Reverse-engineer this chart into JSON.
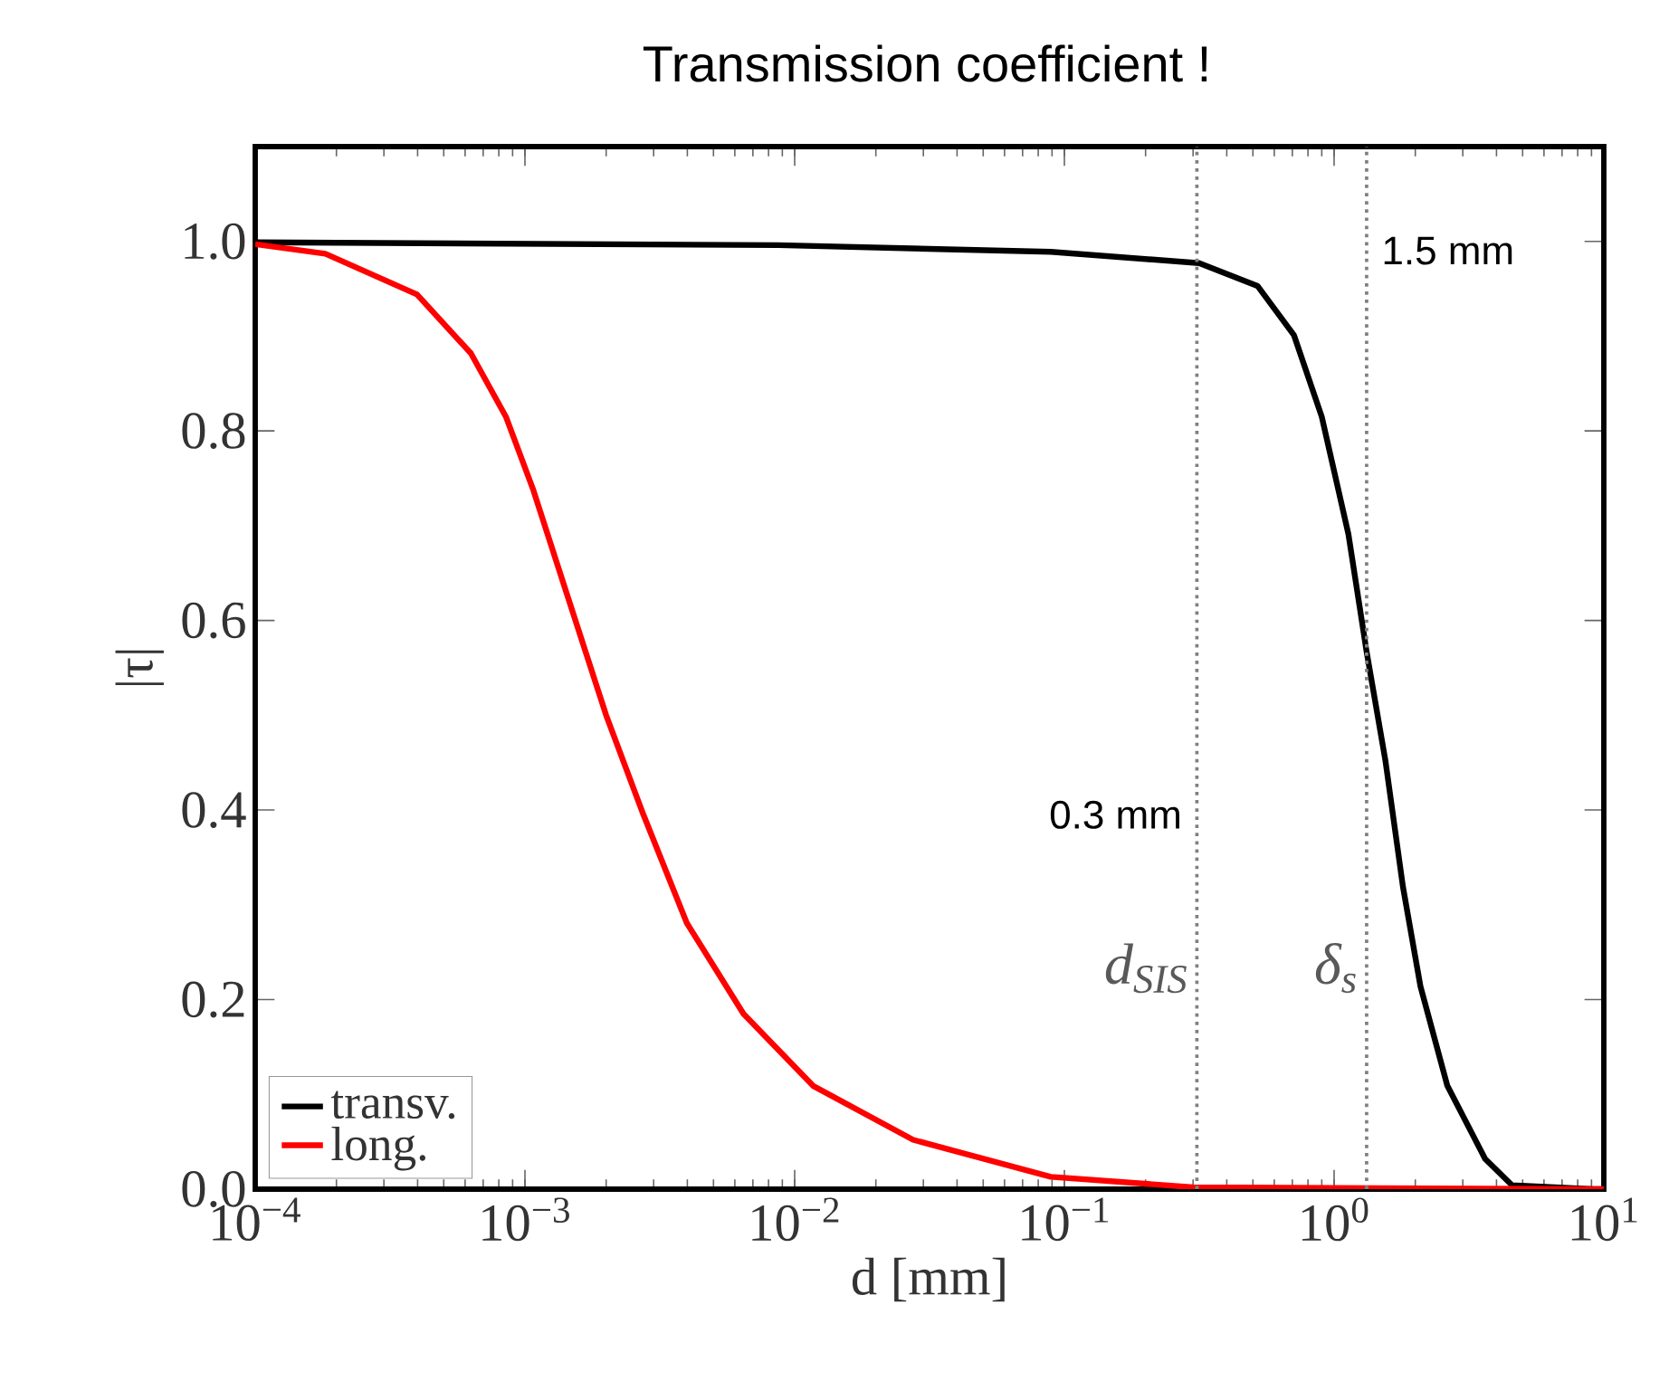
{
  "chart_data": {
    "type": "line",
    "title": "Transmission coefficient !",
    "xlabel": "d [mm]",
    "ylabel": "|τ|",
    "log": "x",
    "xlim": [
      0.0001,
      10
    ],
    "ylim": [
      0,
      1.1
    ],
    "xticks": [
      {
        "value": 0.0001,
        "label": "10$^{−4}$"
      },
      {
        "value": 0.001,
        "label": "10$^{−3}$"
      },
      {
        "value": 0.01,
        "label": "10$^{−2}$"
      },
      {
        "value": 0.1,
        "label": "10$^{−1}$"
      },
      {
        "value": 1,
        "label": "10$^{0}$"
      },
      {
        "value": 10,
        "label": "10$^{1}$"
      }
    ],
    "yticks": [
      {
        "value": 0,
        "label": "0.0"
      },
      {
        "value": 0.2,
        "label": "0.2"
      },
      {
        "value": 0.4,
        "label": "0.4"
      },
      {
        "value": 0.6,
        "label": "0.6"
      },
      {
        "value": 0.8,
        "label": "0.8"
      },
      {
        "value": 1,
        "label": "1.0"
      }
    ],
    "series": [
      {
        "name": "transv.",
        "color": "#000000",
        "x": [
          0.0001,
          0.0087,
          0.089,
          0.316,
          0.52,
          0.71,
          0.9,
          1.13,
          1.32,
          1.55,
          1.8,
          2.09,
          2.63,
          3.63,
          4.57,
          9.1,
          10
        ],
        "values": [
          0.999,
          0.996,
          0.989,
          0.977,
          0.953,
          0.901,
          0.815,
          0.691,
          0.567,
          0.452,
          0.319,
          0.214,
          0.109,
          0.032,
          0.004,
          0,
          0
        ]
      },
      {
        "name": "long.",
        "color": "#ff0000",
        "x": [
          0.0001,
          0.000182,
          0.000398,
          0.00063,
          0.00085,
          0.00107,
          0.00148,
          0.002,
          0.00275,
          0.00398,
          0.00646,
          0.0117,
          0.0275,
          0.089,
          0.3,
          9.1,
          10
        ],
        "values": [
          0.997,
          0.987,
          0.944,
          0.882,
          0.815,
          0.739,
          0.615,
          0.5,
          0.395,
          0.281,
          0.185,
          0.109,
          0.052,
          0.013,
          0.002,
          0,
          0
        ]
      }
    ],
    "ref_lines": [
      {
        "axis": "x",
        "value": 0.31,
        "label": "d$_{SIS}$",
        "color": "#808080",
        "line_style": "dotted"
      },
      {
        "axis": "x",
        "value": 1.32,
        "label": "δ$_{s}$",
        "color": "#808080",
        "line_style": "dotted"
      }
    ],
    "annotations": [
      {
        "text": "0.3 mm",
        "x": 0.31,
        "y": 0.395
      },
      {
        "text": "1.5 mm",
        "x": 1.32,
        "y": 0.99
      }
    ],
    "legend": "bottom left",
    "marker": "none",
    "line_style": "solid",
    "grid": false
  }
}
